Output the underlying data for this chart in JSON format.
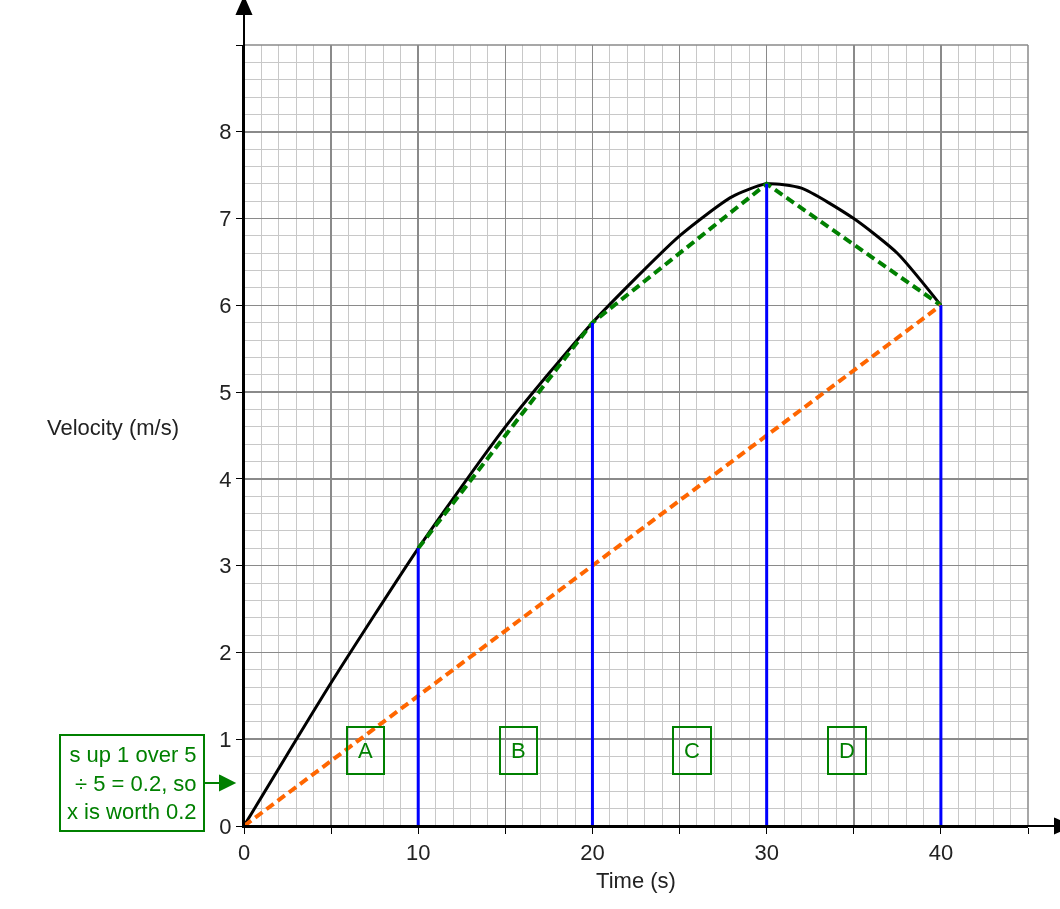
{
  "chart_data": {
    "type": "line",
    "xlabel": "Time (s)",
    "ylabel": "Velocity (m/s)",
    "xlim": [
      0,
      45
    ],
    "ylim": [
      0,
      9
    ],
    "xticks": [
      0,
      {
        "value": 5,
        "label": null
      },
      10,
      {
        "value": 15,
        "label": null
      },
      20,
      {
        "value": 25,
        "label": null
      },
      30,
      {
        "value": 35,
        "label": null
      },
      40,
      {
        "value": 45,
        "label": null
      }
    ],
    "yticks": [
      0,
      1,
      2,
      3,
      4,
      5,
      6,
      7,
      8,
      {
        "value": 9,
        "label": null
      }
    ],
    "grid": true,
    "marker": "none",
    "series": [
      {
        "color": "#000000",
        "line_style": "solid",
        "x": [
          0,
          5,
          10,
          15,
          20,
          25,
          28,
          30,
          32,
          35,
          37.5,
          40
        ],
        "values": [
          0,
          1.65,
          3.2,
          4.6,
          5.8,
          6.8,
          7.25,
          7.4,
          7.35,
          7.0,
          6.6,
          6.0
        ]
      },
      {
        "color": "#008000",
        "line_style": "dashed",
        "x": [
          10,
          20,
          30,
          40
        ],
        "values": [
          3.2,
          5.8,
          7.4,
          6.0
        ]
      },
      {
        "color": "#ff6600",
        "line_style": "dashed",
        "x": [
          0,
          40
        ],
        "values": [
          0,
          6.0
        ]
      },
      {
        "color": "#0000ff",
        "line_style": "solid",
        "x": [
          10,
          10
        ],
        "values": [
          0,
          3.2
        ]
      },
      {
        "color": "#0000ff",
        "line_style": "solid",
        "x": [
          20,
          20
        ],
        "values": [
          0,
          5.8
        ]
      },
      {
        "color": "#0000ff",
        "line_style": "solid",
        "x": [
          30,
          30
        ],
        "values": [
          0,
          7.4
        ]
      },
      {
        "color": "#0000ff",
        "line_style": "solid",
        "x": [
          40,
          40
        ],
        "values": [
          0,
          6.0
        ]
      }
    ],
    "annotations": [
      "A",
      "B",
      "C",
      "D",
      "s up 1 over 5\n÷ 5 = 0.2, so\nx is worth 0.2"
    ]
  }
}
